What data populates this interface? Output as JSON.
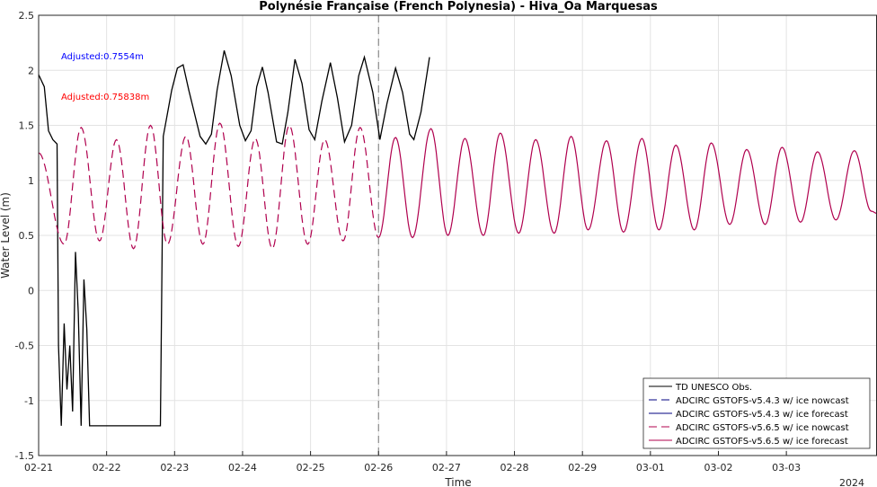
{
  "chart_data": {
    "type": "line",
    "title": "Polynésie Française (French Polynesia) - Hiva_Oa Marquesas",
    "xlabel": "Time",
    "ylabel": "Water Level (m)",
    "year_label": "2024",
    "x_tick_labels": [
      "02-21",
      "02-22",
      "02-23",
      "02-24",
      "02-25",
      "02-26",
      "02-27",
      "02-28",
      "02-29",
      "03-01",
      "03-02",
      "03-03"
    ],
    "xlim": [
      "2024-02-21 00:00",
      "2024-03-04 08:00"
    ],
    "ylim": [
      -1.5,
      2.5
    ],
    "y_ticks": [
      -1.5,
      -1,
      -0.5,
      0,
      0.5,
      1,
      1.5,
      2,
      2.5
    ],
    "y_tick_labels": [
      "-1.5",
      "-1",
      "-0.5",
      "0",
      "0.5",
      "1",
      "1.5",
      "2",
      "2.5"
    ],
    "nowcast_forecast_divider": "2024-02-26 00:00",
    "annotations": [
      {
        "text": "Adjusted:0.7554m",
        "color": "#0000ff"
      },
      {
        "text": "Adjusted:0.75838m",
        "color": "#ff0000"
      }
    ],
    "legend_placement": "bottom-right",
    "series": [
      {
        "name": "TD UNESCO Obs.",
        "color": "#000000",
        "style": "solid",
        "points": [
          [
            "02-21 00:00",
            1.96
          ],
          [
            "02-21 02:00",
            1.85
          ],
          [
            "02-21 03:30",
            1.45
          ],
          [
            "02-21 05:00",
            1.37
          ],
          [
            "02-21 06:30",
            1.33
          ],
          [
            "02-21 07:00",
            -0.5
          ],
          [
            "02-21 08:00",
            -1.23
          ],
          [
            "02-21 09:00",
            -0.3
          ],
          [
            "02-21 10:00",
            -0.9
          ],
          [
            "02-21 11:00",
            -0.5
          ],
          [
            "02-21 12:00",
            -1.1
          ],
          [
            "02-21 13:00",
            0.35
          ],
          [
            "02-21 14:00",
            -0.2
          ],
          [
            "02-21 15:00",
            -1.23
          ],
          [
            "02-21 16:00",
            0.1
          ],
          [
            "02-21 17:00",
            -0.35
          ],
          [
            "02-21 18:00",
            -1.23
          ],
          [
            "02-21 20:00",
            -1.23
          ],
          [
            "02-22 00:00",
            -1.23
          ],
          [
            "02-22 06:00",
            -1.23
          ],
          [
            "02-22 12:00",
            -1.23
          ],
          [
            "02-22 18:00",
            -1.23
          ],
          [
            "02-22 19:00",
            -1.23
          ],
          [
            "02-22 20:00",
            1.4
          ],
          [
            "02-22 23:00",
            1.82
          ],
          [
            "02-23 01:00",
            2.02
          ],
          [
            "02-23 03:00",
            2.05
          ],
          [
            "02-23 05:00",
            1.82
          ],
          [
            "02-23 09:00",
            1.4
          ],
          [
            "02-23 11:00",
            1.33
          ],
          [
            "02-23 13:00",
            1.42
          ],
          [
            "02-23 15:00",
            1.82
          ],
          [
            "02-23 17:30",
            2.18
          ],
          [
            "02-23 20:00",
            1.95
          ],
          [
            "02-23 23:00",
            1.5
          ],
          [
            "02-24 01:00",
            1.36
          ],
          [
            "02-24 03:00",
            1.45
          ],
          [
            "02-24 05:00",
            1.85
          ],
          [
            "02-24 07:00",
            2.03
          ],
          [
            "02-24 09:00",
            1.8
          ],
          [
            "02-24 12:00",
            1.35
          ],
          [
            "02-24 14:00",
            1.33
          ],
          [
            "02-24 16:00",
            1.62
          ],
          [
            "02-24 18:30",
            2.1
          ],
          [
            "02-24 21:00",
            1.88
          ],
          [
            "02-24 23:30",
            1.46
          ],
          [
            "02-25 01:30",
            1.37
          ],
          [
            "02-25 04:00",
            1.72
          ],
          [
            "02-25 07:00",
            2.07
          ],
          [
            "02-25 09:30",
            1.75
          ],
          [
            "02-25 12:00",
            1.35
          ],
          [
            "02-25 14:30",
            1.5
          ],
          [
            "02-25 17:00",
            1.95
          ],
          [
            "02-25 19:00",
            2.12
          ],
          [
            "02-25 22:00",
            1.8
          ],
          [
            "02-26 00:30",
            1.37
          ],
          [
            "02-26 03:00",
            1.7
          ],
          [
            "02-26 06:00",
            2.02
          ],
          [
            "02-26 08:30",
            1.8
          ],
          [
            "02-26 11:00",
            1.42
          ],
          [
            "02-26 12:30",
            1.37
          ],
          [
            "02-26 15:00",
            1.62
          ],
          [
            "02-26 17:00",
            1.95
          ],
          [
            "02-26 18:00",
            2.12
          ]
        ]
      },
      {
        "name": "ADCIRC GSTOFS-v5.4.3 w/ ice nowcast",
        "color": "#000080",
        "style": "dashed"
      },
      {
        "name": "ADCIRC GSTOFS-v5.4.3 w/ ice forecast",
        "color": "#000080",
        "style": "solid"
      },
      {
        "name": "ADCIRC GSTOFS-v5.6.5 w/ ice nowcast",
        "color": "#b0004e",
        "style": "dashed",
        "peaks": [
          [
            "02-21 00:00",
            1.25
          ],
          [
            "02-21 09:00",
            0.42
          ],
          [
            "02-21 15:00",
            1.48
          ],
          [
            "02-21 21:30",
            0.45
          ],
          [
            "02-22 03:30",
            1.37
          ],
          [
            "02-22 09:30",
            0.38
          ],
          [
            "02-22 15:30",
            1.5
          ],
          [
            "02-22 21:30",
            0.42
          ],
          [
            "02-23 04:00",
            1.4
          ],
          [
            "02-23 10:00",
            0.42
          ],
          [
            "02-23 16:00",
            1.52
          ],
          [
            "02-23 22:30",
            0.4
          ],
          [
            "02-24 04:30",
            1.38
          ],
          [
            "02-24 10:30",
            0.38
          ],
          [
            "02-24 16:30",
            1.5
          ],
          [
            "02-24 23:00",
            0.42
          ],
          [
            "02-25 05:00",
            1.37
          ],
          [
            "02-25 11:30",
            0.45
          ],
          [
            "02-25 17:30",
            1.48
          ],
          [
            "02-26 00:00",
            0.48
          ]
        ]
      },
      {
        "name": "ADCIRC GSTOFS-v5.6.5 w/ ice forecast",
        "color": "#b0004e",
        "style": "solid",
        "peaks": [
          [
            "02-26 00:00",
            0.48
          ],
          [
            "02-26 06:00",
            1.39
          ],
          [
            "02-26 12:00",
            0.48
          ],
          [
            "02-26 18:30",
            1.47
          ],
          [
            "02-27 00:30",
            0.5
          ],
          [
            "02-27 06:30",
            1.38
          ],
          [
            "02-27 13:00",
            0.5
          ],
          [
            "02-27 19:00",
            1.43
          ],
          [
            "02-28 01:30",
            0.52
          ],
          [
            "02-28 07:30",
            1.37
          ],
          [
            "02-28 14:00",
            0.52
          ],
          [
            "02-28 20:00",
            1.4
          ],
          [
            "02-29 02:00",
            0.55
          ],
          [
            "02-29 08:30",
            1.36
          ],
          [
            "02-29 14:30",
            0.53
          ],
          [
            "02-29 21:00",
            1.38
          ],
          [
            "03-01 03:00",
            0.55
          ],
          [
            "03-01 09:00",
            1.32
          ],
          [
            "03-01 15:30",
            0.55
          ],
          [
            "03-01 21:30",
            1.34
          ],
          [
            "03-02 04:00",
            0.6
          ],
          [
            "03-02 10:00",
            1.28
          ],
          [
            "03-02 16:30",
            0.6
          ],
          [
            "03-02 22:30",
            1.3
          ],
          [
            "03-03 05:00",
            0.62
          ],
          [
            "03-03 11:00",
            1.26
          ],
          [
            "03-03 17:30",
            0.64
          ],
          [
            "03-04 00:00",
            1.27
          ],
          [
            "03-04 06:00",
            0.72
          ],
          [
            "03-04 08:00",
            0.7
          ]
        ]
      }
    ]
  }
}
